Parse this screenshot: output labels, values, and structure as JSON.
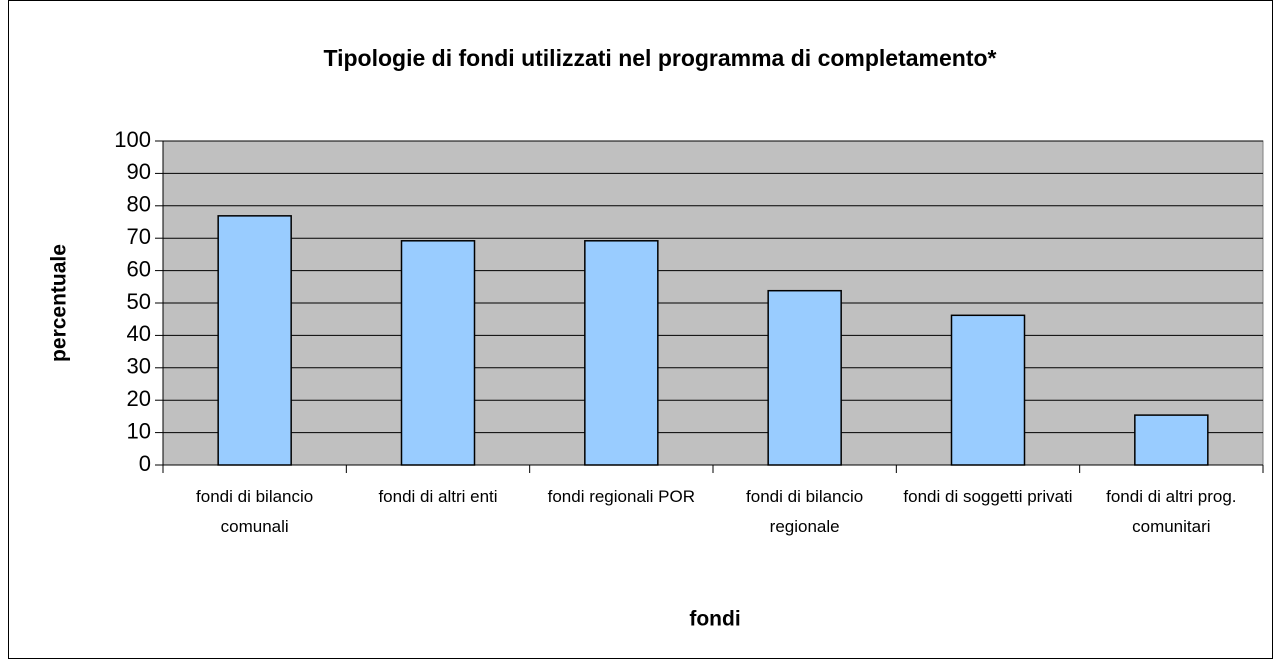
{
  "chart_data": {
    "type": "bar",
    "title": "Tipologie di fondi utilizzati nel programma di completamento*",
    "x_label": "fondi",
    "y_label": "percentuale",
    "categories": [
      "fondi di bilancio comunali",
      "fondi di altri enti",
      "fondi regionali POR",
      "fondi di bilancio regionale",
      "fondi di soggetti privati",
      "fondi di altri prog. comunitari"
    ],
    "values": [
      76.9,
      69.2,
      69.2,
      53.8,
      46.2,
      15.4
    ],
    "color": "#99ccff",
    "ylim": [
      0,
      100
    ],
    "yticks": [
      0,
      10,
      20,
      30,
      40,
      50,
      60,
      70,
      80,
      90,
      100
    ],
    "grid": true
  }
}
